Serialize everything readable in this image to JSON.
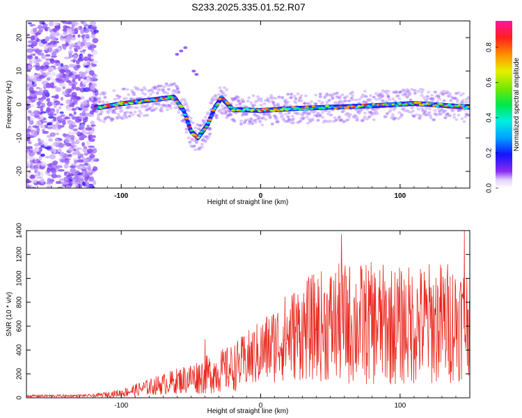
{
  "title": "S233.2025.335.01.52.R07",
  "chart_data": [
    {
      "type": "heatmap",
      "xlabel": "Height of straight line (km)",
      "ylabel": "Frequency (Hz)",
      "xlim": [
        -168,
        150
      ],
      "ylim": [
        -25,
        25
      ],
      "xticks": [
        -100,
        0,
        100
      ],
      "yticks": [
        -20,
        -10,
        0,
        10,
        20
      ],
      "colorbar": {
        "label": "Normalized spectral amplitude",
        "range": [
          0,
          0.95
        ],
        "ticks": [
          0.0,
          0.2,
          0.4,
          0.6,
          0.8
        ]
      },
      "ridge": [
        {
          "x": -117,
          "f": -1.0
        },
        {
          "x": -100,
          "f": 0.2
        },
        {
          "x": -85,
          "f": 1.0
        },
        {
          "x": -70,
          "f": 1.8
        },
        {
          "x": -62,
          "f": 2.2
        },
        {
          "x": -55,
          "f": -2.0
        },
        {
          "x": -50,
          "f": -8.0
        },
        {
          "x": -45,
          "f": -10.0
        },
        {
          "x": -38,
          "f": -6.0
        },
        {
          "x": -33,
          "f": -1.0
        },
        {
          "x": -28,
          "f": 2.0
        },
        {
          "x": -20,
          "f": -1.5
        },
        {
          "x": 0,
          "f": -1.8
        },
        {
          "x": 25,
          "f": -1.2
        },
        {
          "x": 50,
          "f": -0.8
        },
        {
          "x": 80,
          "f": -0.4
        },
        {
          "x": 110,
          "f": 0.3
        },
        {
          "x": 150,
          "f": -0.8
        }
      ]
    },
    {
      "type": "line",
      "xlabel": "Height of straight line (km)",
      "ylabel": "SNR (10 * v/v)",
      "xlim": [
        -168,
        150
      ],
      "ylim": [
        0,
        1400
      ],
      "xticks": [
        -100,
        0,
        100
      ],
      "yticks": [
        0,
        200,
        400,
        600,
        800,
        1000,
        1200,
        1400
      ],
      "color": "#e8281e",
      "envelope": {
        "x": [
          -168,
          -120,
          -100,
          -80,
          -60,
          -40,
          -20,
          0,
          20,
          40,
          60,
          80,
          100,
          120,
          140,
          150
        ],
        "mean": [
          15,
          18,
          40,
          90,
          140,
          190,
          250,
          380,
          520,
          600,
          620,
          620,
          600,
          620,
          640,
          650
        ],
        "spread": [
          10,
          12,
          35,
          70,
          110,
          160,
          200,
          280,
          380,
          460,
          520,
          520,
          500,
          520,
          520,
          460
        ]
      },
      "notable_peaks": [
        {
          "x": -40,
          "y": 490
        },
        {
          "x": 58,
          "y": 1370
        },
        {
          "x": 146,
          "y": 1400
        }
      ]
    }
  ]
}
